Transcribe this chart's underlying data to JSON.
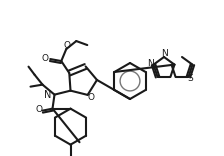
{
  "bg_color": "#ffffff",
  "line_color": "#1a1a1a",
  "bond_lw": 1.5,
  "figsize": [
    2.24,
    1.56
  ],
  "dpi": 100,
  "xlim": [
    0,
    224
  ],
  "ylim": [
    0,
    156
  ]
}
